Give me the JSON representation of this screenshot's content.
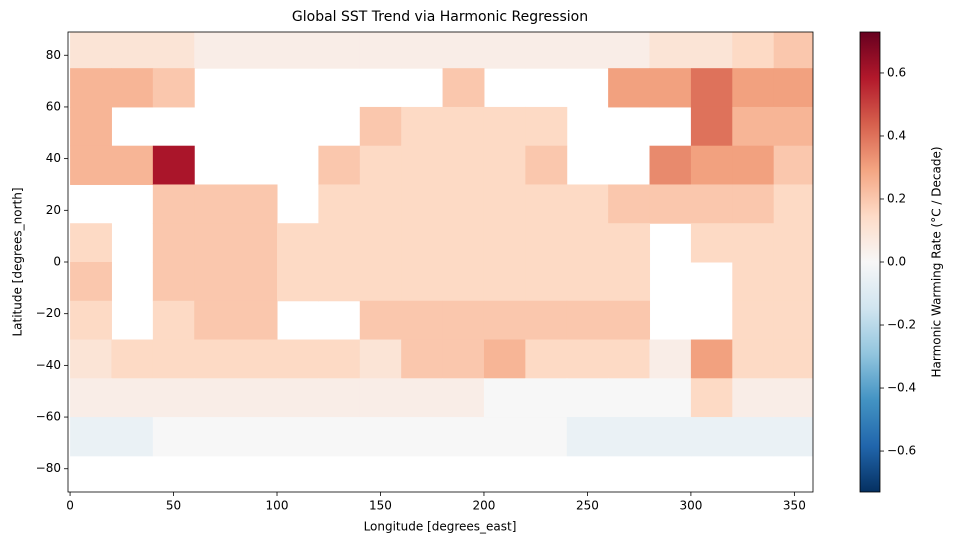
{
  "chart_data": {
    "type": "heatmap",
    "title": "Global SST Trend via Harmonic Regression",
    "x_label": "Longitude [degrees_east]",
    "y_label": "Latitude [degrees_north]",
    "colorbar_label": "Harmonic Warming Rate (°C / Decade)",
    "x": [
      10,
      30,
      50,
      70,
      90,
      110,
      130,
      150,
      170,
      190,
      210,
      230,
      250,
      270,
      290,
      310,
      330,
      350
    ],
    "y": [
      82.5,
      67.5,
      52.5,
      37.5,
      22.5,
      7.5,
      -7.5,
      -22.5,
      -37.5,
      -52.5,
      -67.5,
      -82.5
    ],
    "cell_width": 20,
    "cell_height": 15,
    "values": [
      [
        0.1,
        0.1,
        0.1,
        0.05,
        0.05,
        0.05,
        0.05,
        0.05,
        0.05,
        0.05,
        0.05,
        0.05,
        0.05,
        0.05,
        0.1,
        0.1,
        0.15,
        0.2
      ],
      [
        0.25,
        0.25,
        0.2,
        null,
        null,
        null,
        null,
        null,
        null,
        0.2,
        null,
        null,
        null,
        0.3,
        0.3,
        0.4,
        0.3,
        0.3
      ],
      [
        0.25,
        null,
        null,
        null,
        null,
        null,
        null,
        0.2,
        0.15,
        0.15,
        0.15,
        0.15,
        null,
        null,
        null,
        0.4,
        0.25,
        0.25
      ],
      [
        0.25,
        0.25,
        0.6,
        null,
        null,
        null,
        0.2,
        0.15,
        0.15,
        0.15,
        0.15,
        0.2,
        null,
        null,
        0.35,
        0.3,
        0.3,
        0.2
      ],
      [
        null,
        null,
        0.2,
        0.2,
        0.2,
        null,
        0.15,
        0.15,
        0.15,
        0.15,
        0.15,
        0.15,
        0.15,
        0.2,
        0.2,
        0.2,
        0.2,
        0.15
      ],
      [
        0.15,
        null,
        0.2,
        0.2,
        0.2,
        0.15,
        0.15,
        0.15,
        0.15,
        0.15,
        0.15,
        0.15,
        0.15,
        0.15,
        null,
        0.15,
        0.15,
        0.15
      ],
      [
        0.2,
        null,
        0.2,
        0.2,
        0.2,
        0.15,
        0.15,
        0.15,
        0.15,
        0.15,
        0.15,
        0.15,
        0.15,
        0.15,
        null,
        null,
        0.15,
        0.15
      ],
      [
        0.15,
        null,
        0.15,
        0.2,
        0.2,
        null,
        null,
        0.2,
        0.2,
        0.2,
        0.2,
        0.2,
        0.2,
        0.2,
        null,
        null,
        0.15,
        0.15
      ],
      [
        0.1,
        0.15,
        0.15,
        0.15,
        0.15,
        0.15,
        0.15,
        0.1,
        0.2,
        0.2,
        0.25,
        0.15,
        0.15,
        0.15,
        0.05,
        0.3,
        0.15,
        0.15
      ],
      [
        0.05,
        0.05,
        0.05,
        0.05,
        0.05,
        0.05,
        0.05,
        0.05,
        0.05,
        0.05,
        0.0,
        0.0,
        0.0,
        0.0,
        0.0,
        0.15,
        0.05,
        0.05
      ],
      [
        -0.05,
        -0.05,
        0.0,
        0.0,
        0.0,
        0.0,
        0.0,
        0.0,
        0.0,
        0.0,
        0.0,
        0.0,
        -0.05,
        -0.05,
        -0.05,
        -0.05,
        -0.05,
        -0.05
      ],
      [
        null,
        null,
        null,
        null,
        null,
        null,
        null,
        null,
        null,
        null,
        null,
        null,
        null,
        null,
        null,
        null,
        null,
        null
      ]
    ],
    "xlim": [
      -1,
      359
    ],
    "ylim": [
      -89,
      89
    ],
    "xticks": [
      0,
      50,
      100,
      150,
      200,
      250,
      300,
      350
    ],
    "yticks": [
      {
        "value": -80,
        "label": "−80"
      },
      {
        "value": -60,
        "label": "−60"
      },
      {
        "value": -40,
        "label": "−40"
      },
      {
        "value": -20,
        "label": "−20"
      },
      0,
      20,
      40,
      60,
      80
    ],
    "clim": [
      -0.73,
      0.73
    ],
    "cticks": [
      {
        "value": -0.6,
        "label": "−0.6"
      },
      {
        "value": -0.4,
        "label": "−0.4"
      },
      {
        "value": -0.2,
        "label": "−0.2"
      },
      {
        "value": 0,
        "label": "0.0"
      },
      0.2,
      0.4,
      0.6
    ],
    "colormap": [
      "#053061",
      "#2166ac",
      "#4393c3",
      "#92c5de",
      "#d1e5f0",
      "#f7f7f7",
      "#fddbc7",
      "#f4a582",
      "#d6604d",
      "#b2182b",
      "#67001f"
    ]
  }
}
